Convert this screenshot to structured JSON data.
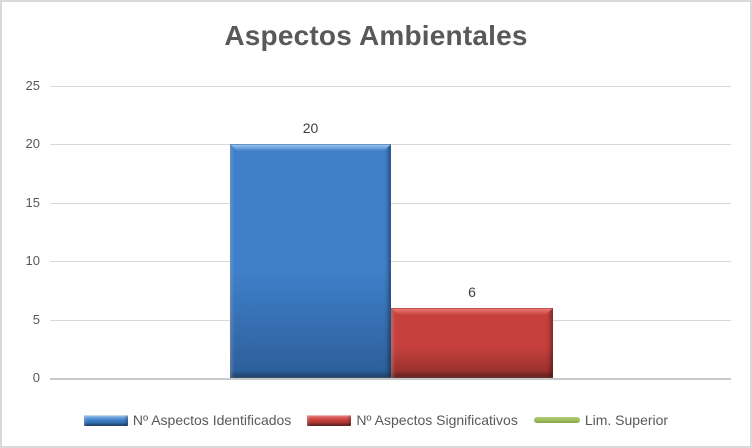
{
  "chart_data": {
    "type": "bar",
    "title": "Aspectos Ambientales",
    "categories": [
      ""
    ],
    "series": [
      {
        "name": "Nº Aspectos Identificados",
        "kind": "bar",
        "values": [
          20
        ],
        "color": "#3F7FC9",
        "color_light": "#9CC7F0",
        "color_dark": "#2C5E99"
      },
      {
        "name": "Nº Aspectos Significativos",
        "kind": "bar",
        "values": [
          6
        ],
        "color": "#C6413E",
        "color_light": "#EC7A74",
        "color_dark": "#8F2D2B"
      },
      {
        "name": "Lim. Superior",
        "kind": "line",
        "values": [],
        "color": "#9BBB59",
        "color_light": "#B5CD7E",
        "color_dark": "#84A344"
      }
    ],
    "data_labels": [
      "20",
      "6"
    ],
    "xlabel": "",
    "ylabel": "",
    "ylim": [
      0,
      25
    ],
    "yticks": [
      0,
      5,
      10,
      15,
      20,
      25
    ],
    "grid": true,
    "legend_position": "bottom"
  },
  "styling": {
    "title_color": "#595959",
    "axis_label_color": "#595959",
    "data_label_color": "#404040",
    "gridline_color": "#D9D9D9",
    "frame_border_color": "#D9D9D9",
    "background_color": "#FFFFFF"
  }
}
